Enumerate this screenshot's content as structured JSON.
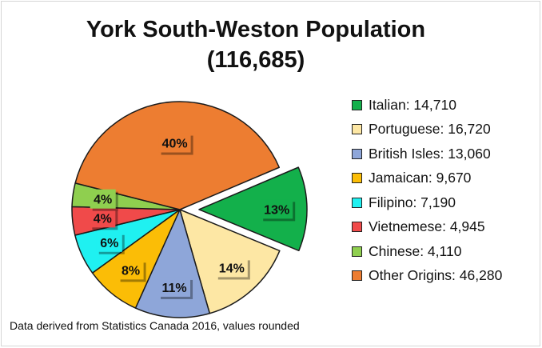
{
  "chart_data": {
    "type": "pie",
    "title": "York South-Weston Population",
    "subtitle": "(116,685)",
    "categories": [
      "Italian",
      "Portuguese",
      "British Isles",
      "Jamaican",
      "Filipino",
      "Vietnemese",
      "Chinese",
      "Other Origins"
    ],
    "values": [
      14710,
      16720,
      13060,
      9670,
      7190,
      4945,
      4110,
      46280
    ],
    "percent_labels": [
      "13%",
      "14%",
      "11%",
      "8%",
      "6%",
      "4%",
      "4%",
      "40%"
    ],
    "legend_labels": [
      "Italian: 14,710",
      "Portuguese: 16,720",
      "British Isles: 13,060",
      "Jamaican: 9,670",
      "Filipino: 7,190",
      "Vietnemese: 4,945",
      "Chinese: 4,110",
      "Other Origins: 46,280"
    ],
    "colors": [
      "#13b04b",
      "#fde7a4",
      "#8ea6d9",
      "#fbbd06",
      "#1ff1f1",
      "#f04a4a",
      "#8fcf4f",
      "#ed7d31"
    ],
    "exploded": [
      "Italian"
    ],
    "legend_position": "right"
  },
  "footnote": "Data derived from Statistics Canada 2016, values rounded"
}
